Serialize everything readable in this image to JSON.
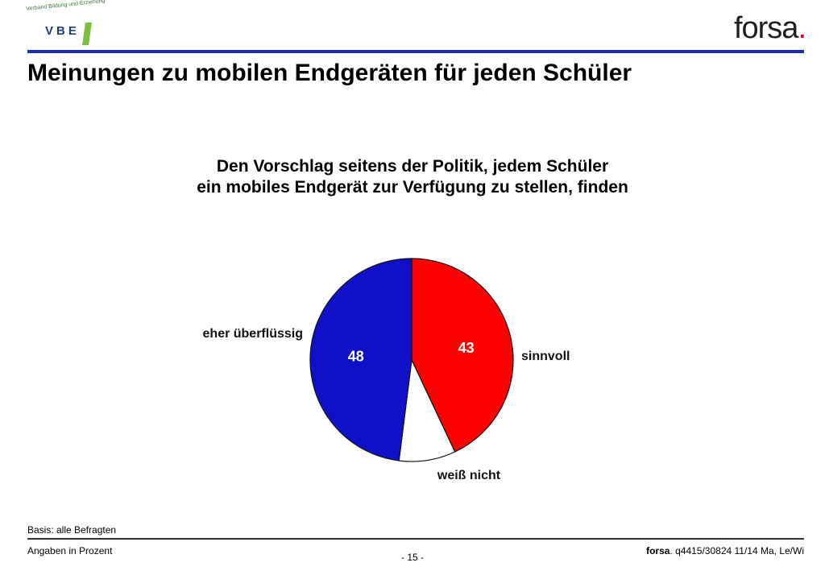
{
  "header": {
    "vbe_logo": {
      "association_text": "Verband Bildung und Erziehung",
      "mark_text": "VBE"
    },
    "forsa_logo": {
      "text": "forsa",
      "dot": "."
    },
    "title": "Meinungen zu mobilen Endgeräten für jeden Schüler"
  },
  "chart_data": {
    "type": "pie",
    "title_lines": [
      "Den Vorschlag seitens der Politik, jedem Schüler",
      "ein mobiles Endgerät zur Verfügung zu stellen, finden"
    ],
    "slices": [
      {
        "label": "sinnvoll",
        "value": 43,
        "value_label": "43",
        "color": "#ff0000"
      },
      {
        "label": "weiß nicht",
        "value": 9,
        "value_label": "",
        "color": "#ffffff"
      },
      {
        "label": "eher überflüssig",
        "value": 48,
        "value_label": "48",
        "color": "#1010c8"
      }
    ],
    "start": "12 o'clock",
    "direction": "clockwise",
    "units": "Prozent"
  },
  "footer": {
    "basis": "Basis: alle Befragten",
    "units_note": "Angaben in Prozent",
    "page": "- 15 -",
    "source_brand": "forsa",
    "source_rest": ". q4415/30824 11/14 Ma, Le/Wi"
  },
  "colors": {
    "accent_blue": "#1a2fb0",
    "brand_red": "#d8001c"
  }
}
